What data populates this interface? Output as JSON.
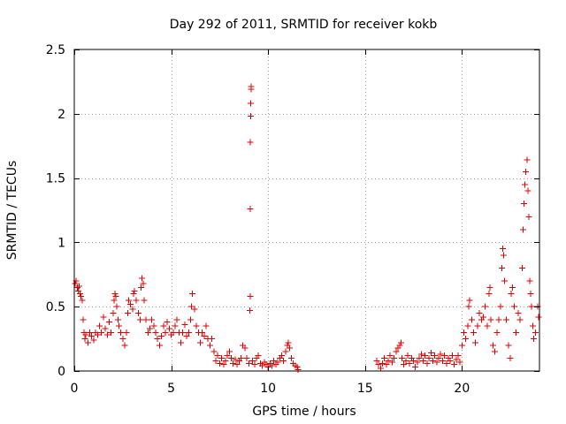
{
  "chart_data": {
    "type": "scatter",
    "title": "Day 292 of 2011, SRMTID for receiver kokb",
    "xlabel": "GPS time / hours",
    "ylabel": "SRMTID / TECUs",
    "xlim": [
      0,
      24
    ],
    "ylim": [
      0,
      2.5
    ],
    "xticks": [
      0,
      5,
      10,
      15,
      20
    ],
    "xtick_labels": [
      "0",
      "5",
      "10",
      "15",
      "20"
    ],
    "yticks": [
      0,
      0.5,
      1,
      1.5,
      2,
      2.5
    ],
    "ytick_labels": [
      "0",
      "0.5",
      "1",
      "1.5",
      "2",
      "2.5"
    ],
    "grid": true,
    "marker": "+",
    "color": "#e00000",
    "series": [
      {
        "name": "SRMTID",
        "points": [
          [
            0.05,
            0.68
          ],
          [
            0.1,
            0.7
          ],
          [
            0.15,
            0.65
          ],
          [
            0.2,
            0.62
          ],
          [
            0.25,
            0.66
          ],
          [
            0.3,
            0.6
          ],
          [
            0.35,
            0.58
          ],
          [
            0.4,
            0.55
          ],
          [
            0.45,
            0.4
          ],
          [
            0.5,
            0.3
          ],
          [
            0.55,
            0.25
          ],
          [
            0.6,
            0.28
          ],
          [
            0.7,
            0.22
          ],
          [
            0.8,
            0.3
          ],
          [
            0.9,
            0.27
          ],
          [
            1.0,
            0.24
          ],
          [
            1.1,
            0.3
          ],
          [
            1.2,
            0.28
          ],
          [
            1.3,
            0.35
          ],
          [
            1.4,
            0.3
          ],
          [
            1.5,
            0.42
          ],
          [
            1.6,
            0.33
          ],
          [
            1.7,
            0.28
          ],
          [
            1.8,
            0.38
          ],
          [
            1.9,
            0.3
          ],
          [
            2.0,
            0.45
          ],
          [
            2.05,
            0.55
          ],
          [
            2.1,
            0.6
          ],
          [
            2.15,
            0.58
          ],
          [
            2.2,
            0.5
          ],
          [
            2.25,
            0.4
          ],
          [
            2.3,
            0.35
          ],
          [
            2.4,
            0.3
          ],
          [
            2.5,
            0.25
          ],
          [
            2.6,
            0.2
          ],
          [
            2.7,
            0.3
          ],
          [
            2.75,
            0.45
          ],
          [
            2.8,
            0.55
          ],
          [
            2.9,
            0.52
          ],
          [
            3.0,
            0.48
          ],
          [
            3.05,
            0.6
          ],
          [
            3.1,
            0.62
          ],
          [
            3.2,
            0.55
          ],
          [
            3.3,
            0.45
          ],
          [
            3.4,
            0.4
          ],
          [
            3.45,
            0.65
          ],
          [
            3.5,
            0.72
          ],
          [
            3.55,
            0.68
          ],
          [
            3.6,
            0.55
          ],
          [
            3.7,
            0.4
          ],
          [
            3.8,
            0.3
          ],
          [
            3.9,
            0.33
          ],
          [
            4.0,
            0.4
          ],
          [
            4.1,
            0.35
          ],
          [
            4.2,
            0.3
          ],
          [
            4.3,
            0.25
          ],
          [
            4.4,
            0.2
          ],
          [
            4.5,
            0.27
          ],
          [
            4.6,
            0.35
          ],
          [
            4.7,
            0.3
          ],
          [
            4.8,
            0.38
          ],
          [
            4.9,
            0.33
          ],
          [
            5.0,
            0.28
          ],
          [
            5.1,
            0.3
          ],
          [
            5.2,
            0.35
          ],
          [
            5.3,
            0.4
          ],
          [
            5.4,
            0.3
          ],
          [
            5.5,
            0.22
          ],
          [
            5.6,
            0.3
          ],
          [
            5.7,
            0.36
          ],
          [
            5.8,
            0.27
          ],
          [
            5.9,
            0.3
          ],
          [
            6.0,
            0.4
          ],
          [
            6.05,
            0.5
          ],
          [
            6.1,
            0.6
          ],
          [
            6.2,
            0.48
          ],
          [
            6.3,
            0.35
          ],
          [
            6.4,
            0.3
          ],
          [
            6.5,
            0.22
          ],
          [
            6.6,
            0.3
          ],
          [
            6.7,
            0.27
          ],
          [
            6.8,
            0.35
          ],
          [
            6.9,
            0.25
          ],
          [
            7.0,
            0.2
          ],
          [
            7.1,
            0.25
          ],
          [
            7.2,
            0.15
          ],
          [
            7.3,
            0.08
          ],
          [
            7.4,
            0.12
          ],
          [
            7.5,
            0.06
          ],
          [
            7.6,
            0.1
          ],
          [
            7.7,
            0.05
          ],
          [
            7.8,
            0.08
          ],
          [
            7.9,
            0.12
          ],
          [
            8.0,
            0.15
          ],
          [
            8.1,
            0.1
          ],
          [
            8.2,
            0.06
          ],
          [
            8.3,
            0.09
          ],
          [
            8.4,
            0.05
          ],
          [
            8.5,
            0.08
          ],
          [
            8.6,
            0.1
          ],
          [
            8.7,
            0.2
          ],
          [
            8.8,
            0.18
          ],
          [
            8.9,
            0.1
          ],
          [
            9.0,
            0.06
          ],
          [
            9.05,
            0.47
          ],
          [
            9.07,
            0.58
          ],
          [
            9.08,
            1.26
          ],
          [
            9.09,
            1.78
          ],
          [
            9.1,
            1.98
          ],
          [
            9.11,
            2.08
          ],
          [
            9.12,
            2.19
          ],
          [
            9.13,
            2.21
          ],
          [
            9.2,
            0.08
          ],
          [
            9.3,
            0.05
          ],
          [
            9.4,
            0.1
          ],
          [
            9.5,
            0.12
          ],
          [
            9.6,
            0.06
          ],
          [
            9.7,
            0.04
          ],
          [
            9.8,
            0.07
          ],
          [
            9.9,
            0.05
          ],
          [
            10.0,
            0.03
          ],
          [
            10.1,
            0.06
          ],
          [
            10.2,
            0.04
          ],
          [
            10.3,
            0.08
          ],
          [
            10.4,
            0.05
          ],
          [
            10.5,
            0.07
          ],
          [
            10.6,
            0.1
          ],
          [
            10.7,
            0.12
          ],
          [
            10.8,
            0.08
          ],
          [
            10.9,
            0.15
          ],
          [
            11.0,
            0.2
          ],
          [
            11.05,
            0.22
          ],
          [
            11.1,
            0.18
          ],
          [
            11.2,
            0.1
          ],
          [
            11.3,
            0.06
          ],
          [
            11.4,
            0.04
          ],
          [
            11.5,
            0.03
          ],
          [
            11.55,
            0.01
          ],
          [
            15.6,
            0.08
          ],
          [
            15.7,
            0.05
          ],
          [
            15.8,
            0.02
          ],
          [
            15.9,
            0.06
          ],
          [
            16.0,
            0.1
          ],
          [
            16.1,
            0.05
          ],
          [
            16.2,
            0.08
          ],
          [
            16.3,
            0.12
          ],
          [
            16.4,
            0.07
          ],
          [
            16.5,
            0.1
          ],
          [
            16.6,
            0.15
          ],
          [
            16.7,
            0.18
          ],
          [
            16.8,
            0.2
          ],
          [
            16.85,
            0.22
          ],
          [
            16.9,
            0.1
          ],
          [
            17.0,
            0.05
          ],
          [
            17.1,
            0.08
          ],
          [
            17.2,
            0.12
          ],
          [
            17.3,
            0.06
          ],
          [
            17.4,
            0.1
          ],
          [
            17.5,
            0.08
          ],
          [
            17.6,
            0.03
          ],
          [
            17.7,
            0.07
          ],
          [
            17.8,
            0.1
          ],
          [
            17.9,
            0.13
          ],
          [
            18.0,
            0.08
          ],
          [
            18.1,
            0.12
          ],
          [
            18.2,
            0.06
          ],
          [
            18.3,
            0.1
          ],
          [
            18.4,
            0.14
          ],
          [
            18.5,
            0.08
          ],
          [
            18.6,
            0.12
          ],
          [
            18.7,
            0.07
          ],
          [
            18.8,
            0.1
          ],
          [
            18.9,
            0.13
          ],
          [
            19.0,
            0.08
          ],
          [
            19.1,
            0.12
          ],
          [
            19.2,
            0.06
          ],
          [
            19.3,
            0.1
          ],
          [
            19.4,
            0.08
          ],
          [
            19.5,
            0.12
          ],
          [
            19.6,
            0.05
          ],
          [
            19.7,
            0.09
          ],
          [
            19.8,
            0.12
          ],
          [
            19.9,
            0.07
          ],
          [
            20.0,
            0.2
          ],
          [
            20.1,
            0.3
          ],
          [
            20.2,
            0.25
          ],
          [
            20.3,
            0.35
          ],
          [
            20.35,
            0.5
          ],
          [
            20.4,
            0.55
          ],
          [
            20.5,
            0.4
          ],
          [
            20.6,
            0.3
          ],
          [
            20.7,
            0.22
          ],
          [
            20.8,
            0.35
          ],
          [
            20.9,
            0.45
          ],
          [
            21.0,
            0.4
          ],
          [
            21.1,
            0.42
          ],
          [
            21.2,
            0.5
          ],
          [
            21.3,
            0.35
          ],
          [
            21.4,
            0.6
          ],
          [
            21.45,
            0.65
          ],
          [
            21.5,
            0.4
          ],
          [
            21.6,
            0.2
          ],
          [
            21.7,
            0.15
          ],
          [
            21.8,
            0.3
          ],
          [
            21.9,
            0.4
          ],
          [
            22.0,
            0.5
          ],
          [
            22.05,
            0.8
          ],
          [
            22.1,
            0.95
          ],
          [
            22.15,
            0.9
          ],
          [
            22.2,
            0.7
          ],
          [
            22.3,
            0.4
          ],
          [
            22.4,
            0.2
          ],
          [
            22.5,
            0.1
          ],
          [
            22.55,
            0.6
          ],
          [
            22.6,
            0.65
          ],
          [
            22.7,
            0.5
          ],
          [
            22.8,
            0.3
          ],
          [
            22.9,
            0.45
          ],
          [
            23.0,
            0.4
          ],
          [
            23.1,
            0.8
          ],
          [
            23.15,
            1.1
          ],
          [
            23.2,
            1.3
          ],
          [
            23.25,
            1.45
          ],
          [
            23.3,
            1.55
          ],
          [
            23.35,
            1.64
          ],
          [
            23.4,
            1.4
          ],
          [
            23.45,
            1.2
          ],
          [
            23.5,
            0.7
          ],
          [
            23.55,
            0.6
          ],
          [
            23.6,
            0.5
          ],
          [
            23.65,
            0.35
          ],
          [
            23.7,
            0.25
          ],
          [
            23.8,
            0.3
          ],
          [
            23.9,
            0.5
          ],
          [
            23.95,
            0.42
          ]
        ]
      }
    ]
  }
}
